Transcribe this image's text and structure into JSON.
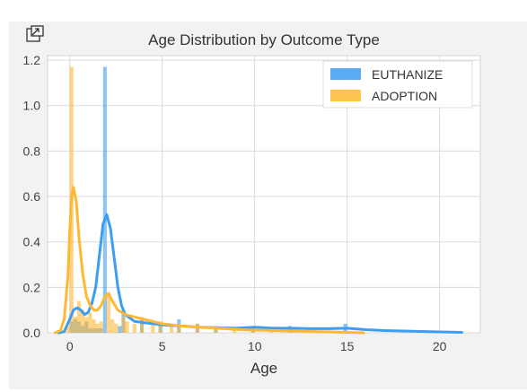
{
  "icons": {
    "popout": "popout-icon"
  },
  "chart_data": {
    "type": "histogram+kde",
    "title": "Age Distribution by Outcome Type",
    "xlabel": "Age",
    "ylabel": "",
    "xlim": [
      -1.2,
      22.2
    ],
    "ylim": [
      0,
      1.22
    ],
    "xticks": [
      0,
      5,
      10,
      15,
      20
    ],
    "xtick_labels": [
      "0",
      "5",
      "10",
      "15",
      "20"
    ],
    "yticks": [
      0.0,
      0.2,
      0.4,
      0.6,
      0.8,
      1.0,
      1.2
    ],
    "ytick_labels": [
      "0.0",
      "0.2",
      "0.4",
      "0.6",
      "0.8",
      "1.0",
      "1.2"
    ],
    "grid": true,
    "legend_position": "top-right",
    "series": [
      {
        "name": "EUTHANIZE",
        "color": "#3d9df0",
        "bins": [
          [
            0.0,
            0.2,
            0.05
          ],
          [
            0.2,
            0.4,
            0.06
          ],
          [
            0.4,
            0.6,
            0.05
          ],
          [
            0.6,
            0.8,
            0.03
          ],
          [
            0.8,
            1.0,
            0.05
          ],
          [
            1.0,
            1.2,
            0.02
          ],
          [
            1.2,
            1.4,
            0.02
          ],
          [
            1.4,
            1.6,
            0.02
          ],
          [
            1.6,
            1.8,
            0.02
          ],
          [
            1.8,
            2.0,
            1.17
          ],
          [
            2.6,
            2.8,
            0.03
          ],
          [
            2.8,
            3.0,
            0.1
          ],
          [
            3.8,
            4.0,
            0.06
          ],
          [
            4.8,
            5.0,
            0.03
          ],
          [
            5.8,
            6.0,
            0.06
          ],
          [
            6.8,
            7.0,
            0.04
          ],
          [
            7.8,
            8.0,
            0.02
          ],
          [
            9.8,
            10.0,
            0.03
          ],
          [
            11.8,
            12.0,
            0.03
          ],
          [
            14.8,
            15.0,
            0.04
          ]
        ],
        "kde": [
          [
            -0.6,
            0.0
          ],
          [
            -0.3,
            0.005
          ],
          [
            0.0,
            0.06
          ],
          [
            0.2,
            0.1
          ],
          [
            0.4,
            0.11
          ],
          [
            0.6,
            0.1
          ],
          [
            0.8,
            0.08
          ],
          [
            1.0,
            0.09
          ],
          [
            1.2,
            0.13
          ],
          [
            1.4,
            0.2
          ],
          [
            1.6,
            0.34
          ],
          [
            1.8,
            0.48
          ],
          [
            2.0,
            0.52
          ],
          [
            2.2,
            0.46
          ],
          [
            2.4,
            0.33
          ],
          [
            2.6,
            0.2
          ],
          [
            2.8,
            0.12
          ],
          [
            3.0,
            0.08
          ],
          [
            3.5,
            0.05
          ],
          [
            4.0,
            0.045
          ],
          [
            5.0,
            0.035
          ],
          [
            6.0,
            0.03
          ],
          [
            7.0,
            0.025
          ],
          [
            8.0,
            0.022
          ],
          [
            9.0,
            0.02
          ],
          [
            10.0,
            0.025
          ],
          [
            11.0,
            0.02
          ],
          [
            12.0,
            0.02
          ],
          [
            13.0,
            0.018
          ],
          [
            14.0,
            0.018
          ],
          [
            15.0,
            0.02
          ],
          [
            16.0,
            0.014
          ],
          [
            17.0,
            0.01
          ],
          [
            18.0,
            0.008
          ],
          [
            19.0,
            0.006
          ],
          [
            20.0,
            0.004
          ],
          [
            21.2,
            0.002
          ]
        ]
      },
      {
        "name": "ADOPTION",
        "color": "#ffb833",
        "bins": [
          [
            -0.2,
            0.0,
            0.03
          ],
          [
            0.0,
            0.2,
            1.17
          ],
          [
            0.2,
            0.4,
            0.07
          ],
          [
            0.4,
            0.6,
            0.14
          ],
          [
            0.6,
            0.8,
            0.1
          ],
          [
            0.8,
            1.0,
            0.07
          ],
          [
            1.0,
            1.2,
            0.09
          ],
          [
            1.2,
            1.4,
            0.06
          ],
          [
            1.4,
            1.6,
            0.04
          ],
          [
            1.6,
            1.8,
            0.05
          ],
          [
            2.0,
            2.2,
            0.18
          ],
          [
            2.2,
            2.4,
            0.06
          ],
          [
            2.4,
            2.6,
            0.04
          ],
          [
            2.8,
            3.0,
            0.07
          ],
          [
            3.0,
            3.2,
            0.05
          ],
          [
            3.4,
            3.6,
            0.04
          ],
          [
            3.8,
            4.0,
            0.07
          ],
          [
            4.4,
            4.6,
            0.04
          ],
          [
            4.8,
            5.0,
            0.05
          ],
          [
            5.4,
            5.6,
            0.03
          ],
          [
            5.8,
            6.0,
            0.04
          ],
          [
            6.8,
            7.0,
            0.04
          ],
          [
            7.8,
            8.0,
            0.03
          ],
          [
            8.8,
            9.0,
            0.02
          ],
          [
            9.8,
            10.0,
            0.02
          ],
          [
            10.8,
            11.0,
            0.02
          ],
          [
            11.8,
            12.0,
            0.015
          ],
          [
            12.8,
            13.0,
            0.015
          ],
          [
            13.8,
            14.0,
            0.01
          ]
        ],
        "kde": [
          [
            -0.8,
            0.0
          ],
          [
            -0.5,
            0.01
          ],
          [
            -0.3,
            0.06
          ],
          [
            -0.1,
            0.25
          ],
          [
            0.0,
            0.45
          ],
          [
            0.1,
            0.6
          ],
          [
            0.2,
            0.64
          ],
          [
            0.35,
            0.58
          ],
          [
            0.5,
            0.42
          ],
          [
            0.7,
            0.26
          ],
          [
            0.9,
            0.16
          ],
          [
            1.1,
            0.12
          ],
          [
            1.3,
            0.1
          ],
          [
            1.5,
            0.1
          ],
          [
            1.7,
            0.12
          ],
          [
            1.9,
            0.16
          ],
          [
            2.1,
            0.17
          ],
          [
            2.3,
            0.14
          ],
          [
            2.6,
            0.1
          ],
          [
            3.0,
            0.08
          ],
          [
            3.5,
            0.07
          ],
          [
            4.0,
            0.06
          ],
          [
            5.0,
            0.04
          ],
          [
            6.0,
            0.03
          ],
          [
            7.0,
            0.025
          ],
          [
            8.0,
            0.02
          ],
          [
            9.0,
            0.015
          ],
          [
            10.0,
            0.012
          ],
          [
            11.0,
            0.01
          ],
          [
            12.0,
            0.008
          ],
          [
            13.0,
            0.006
          ],
          [
            14.0,
            0.004
          ],
          [
            15.0,
            0.002
          ],
          [
            15.9,
            0.0
          ]
        ]
      }
    ]
  }
}
